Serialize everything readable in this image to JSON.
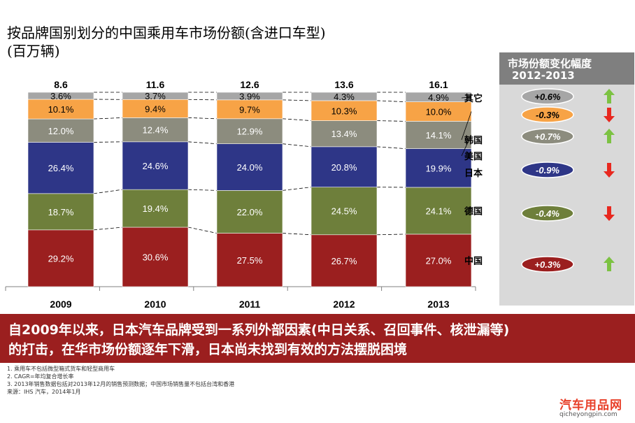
{
  "title_line1": "按品牌国别划分的中国乘用车市场份额(含进口车型)",
  "title_line2": "(百万辆)",
  "change_panel": {
    "title": "市场份额变化幅度",
    "period": "2012-2013",
    "items": [
      {
        "value": "+0.6%",
        "direction": "up",
        "color": "#a6a6a6",
        "text_color": "#000000"
      },
      {
        "value": "-0.3%",
        "direction": "down",
        "color": "#f7a346",
        "text_color": "#000000"
      },
      {
        "value": "+0.7%",
        "direction": "up",
        "color": "#8c8c7e",
        "text_color": "#ffffff"
      },
      {
        "value": "-0.9%",
        "direction": "down",
        "color": "#2e3687",
        "text_color": "#ffffff"
      },
      {
        "value": "-0.4%",
        "direction": "down",
        "color": "#6e7f3b",
        "text_color": "#ffffff"
      },
      {
        "value": "+0.3%",
        "direction": "up",
        "color": "#9b1f1f",
        "text_color": "#ffffff"
      }
    ],
    "up_color": "#7cc242",
    "down_color": "#e8281f"
  },
  "banner": {
    "line1": "自2009年以来，日本汽车品牌受到一系列外部因素(中日关系、召回事件、核泄漏等)",
    "line2": "的打击，在华市场份额逐年下滑，日本尚未找到有效的方法摆脱困境"
  },
  "notes": [
    "1. 乘用车不包括微型箱式货车和轻型商用车",
    "2. CAGR=年均复合增长率",
    "3. 2013年销售数据包括对2013年12月的销售预测数据；中国市场销售量不包括台湾和香港",
    "来源：IHS 汽车，2014年1月"
  ],
  "watermark": {
    "line1": "汽车用品网",
    "line2": "qicheyongpin.com"
  },
  "chart_data": {
    "type": "bar",
    "stacked": true,
    "normalized": true,
    "categories": [
      "2009",
      "2010",
      "2011",
      "2012",
      "2013"
    ],
    "totals": [
      "8.6",
      "11.6",
      "12.6",
      "13.6",
      "16.1"
    ],
    "series": [
      {
        "name": "中国",
        "color": "#9b1f1f",
        "values": [
          29.2,
          30.6,
          27.5,
          26.7,
          27.0
        ],
        "labels": [
          "29.2%",
          "30.6%",
          "27.5%",
          "26.7%",
          "27.0%"
        ]
      },
      {
        "name": "德国",
        "color": "#6e7f3b",
        "values": [
          18.7,
          19.4,
          22.0,
          24.5,
          24.1
        ],
        "labels": [
          "18.7%",
          "19.4%",
          "22.0%",
          "24.5%",
          "24.1%"
        ]
      },
      {
        "name": "日本",
        "color": "#2e3687",
        "values": [
          26.4,
          24.6,
          24.0,
          20.8,
          19.9
        ],
        "labels": [
          "26.4%",
          "24.6%",
          "24.0%",
          "20.8%",
          "19.9%"
        ]
      },
      {
        "name": "美国",
        "color": "#8c8c7e",
        "values": [
          12.0,
          12.4,
          12.9,
          13.4,
          14.1
        ],
        "labels": [
          "12.0%",
          "12.4%",
          "12.9%",
          "13.4%",
          "14.1%"
        ]
      },
      {
        "name": "韩国",
        "color": "#f7a346",
        "values": [
          10.1,
          9.4,
          9.7,
          10.3,
          10.0
        ],
        "labels": [
          "10.1%",
          "9.4%",
          "9.7%",
          "10.3%",
          "10.0%"
        ]
      },
      {
        "name": "其它",
        "color": "#a6a6a6",
        "values": [
          3.6,
          3.7,
          3.9,
          4.3,
          4.9
        ],
        "labels": [
          "3.6%",
          "3.7%",
          "3.9%",
          "4.3%",
          "4.9%"
        ]
      }
    ],
    "label_text_colors": [
      "#ffffff",
      "#ffffff",
      "#ffffff",
      "#ffffff",
      "#000000",
      "#000000"
    ]
  }
}
